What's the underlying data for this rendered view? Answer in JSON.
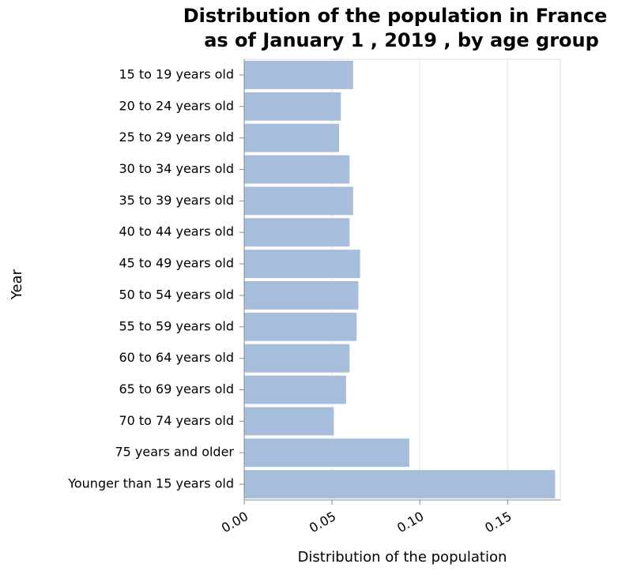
{
  "chart_data": {
    "type": "hbar",
    "title": [
      "Distribution of the population in France",
      "as of January 1 , 2019 , by age group"
    ],
    "x_label": "Distribution of the population",
    "y_label": "Year",
    "categories": [
      "15 to 19 years old",
      "20 to 24 years old",
      "25 to 29 years old",
      "30 to 34 years old",
      "35 to 39 years old",
      "40 to 44 years old",
      "45 to 49 years old",
      "50 to 54 years old",
      "55 to 59 years old",
      "60 to 64 years old",
      "65 to 69 years old",
      "70 to 74 years old",
      "75 years and older",
      "Younger than 15 years old"
    ],
    "values": [
      0.062,
      0.055,
      0.054,
      0.06,
      0.062,
      0.06,
      0.066,
      0.065,
      0.064,
      0.06,
      0.058,
      0.051,
      0.094,
      0.177
    ],
    "color": "#a6bddb",
    "xlim": [
      0,
      0.18
    ],
    "xticks": [
      {
        "value": 0,
        "label": "0.00"
      },
      {
        "value": 0.05,
        "label": "0.05"
      },
      {
        "value": 0.1,
        "label": "0.10"
      },
      {
        "value": 0.15,
        "label": "0.15"
      }
    ],
    "grid": true
  }
}
